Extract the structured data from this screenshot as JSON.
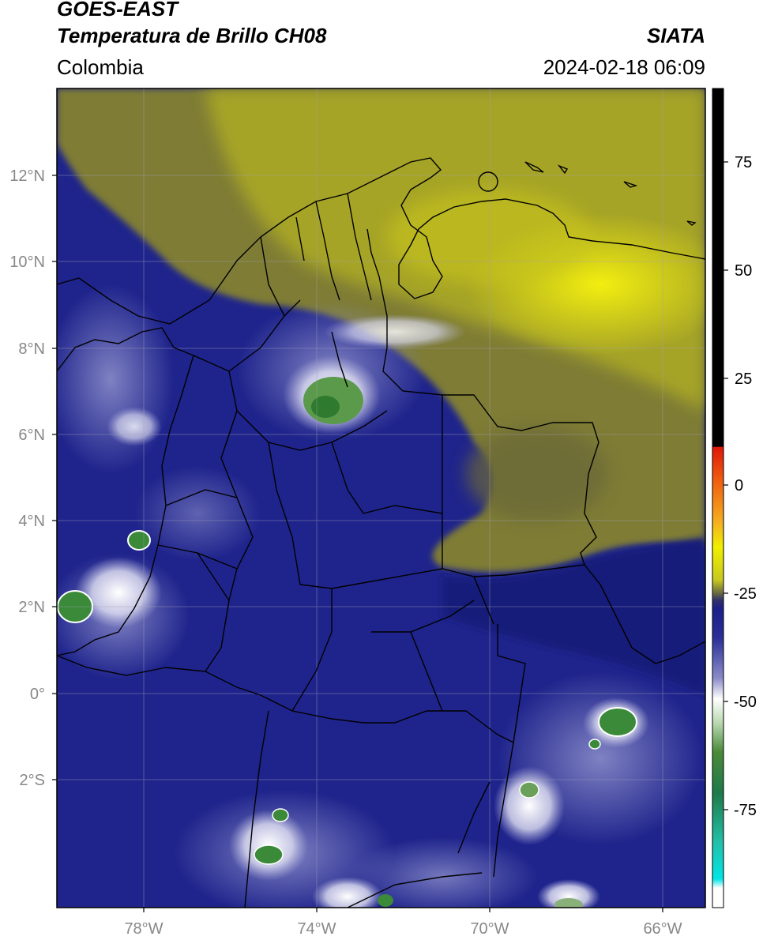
{
  "header": {
    "satellite": "GOES-EAST",
    "product": "Temperatura de Brillo CH08",
    "region": "Colombia",
    "agency": "SIATA",
    "datetime": "2024-02-18 06:09"
  },
  "map": {
    "lat_labels": [
      "12°N",
      "10°N",
      "8°N",
      "6°N",
      "4°N",
      "2°N",
      "0°",
      "2°S"
    ],
    "lon_labels": [
      "78°W",
      "74°W",
      "70°W",
      "66°W"
    ]
  },
  "colorbar": {
    "ticks": [
      "75",
      "50",
      "25",
      "0",
      "-25",
      "-50",
      "-75"
    ],
    "colors": {
      "black": "#000000",
      "red": "#e8200a",
      "orange": "#f5a020",
      "yellow": "#f0f000",
      "olive": "#8a8a28",
      "navy": "#1c1f8a",
      "lavender": "#c8c8e6",
      "white": "#ffffff",
      "green": "#3a8a3a",
      "teal": "#22c8a8",
      "cyan": "#00e6e6"
    }
  }
}
